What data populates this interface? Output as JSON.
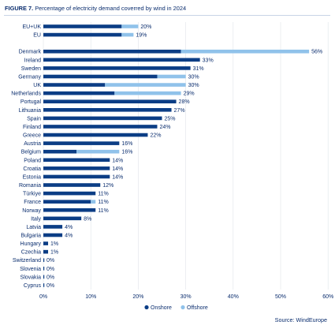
{
  "figure": {
    "label": "FIGURE 7.",
    "title": "Percentage of electricity demand coverred by wind in 2024",
    "source": "Source: WindEurope"
  },
  "colors": {
    "onshore": "#0b3d85",
    "offshore": "#90c2ea",
    "text": "#0a2d6e",
    "grid": "#dfe4ea"
  },
  "chart_data": {
    "type": "bar",
    "orientation": "horizontal",
    "stacked": true,
    "categories": [
      "EU+UK",
      "EU",
      "",
      "Denmark",
      "Ireland",
      "Sweden",
      "Germany",
      "UK",
      "Netherlands",
      "Portugal",
      "Lithuania",
      "Spain",
      "Finland",
      "Greece",
      "Austria",
      "Belgium",
      "Poland",
      "Croatia",
      "Estonia",
      "Romania",
      "Türkiye",
      "France",
      "Norway",
      "Italy",
      "Latvia",
      "Bulgaria",
      "Hungary",
      "Czechia",
      "Switzerland",
      "Slovenia",
      "Slovakia",
      "Cyprus"
    ],
    "series": [
      {
        "name": "Onshore",
        "values": [
          16.5,
          16.5,
          null,
          29,
          33,
          31,
          24,
          13,
          15,
          28,
          27,
          25,
          24,
          22,
          16,
          7,
          14,
          14,
          14,
          12,
          11,
          10,
          11,
          8,
          4,
          4,
          1,
          1,
          0,
          0,
          0,
          0
        ]
      },
      {
        "name": "Offshore",
        "values": [
          3.5,
          2.5,
          null,
          27,
          0,
          0,
          6,
          17,
          14,
          0,
          0,
          0,
          0,
          0,
          0,
          9,
          0,
          0,
          0,
          0,
          0,
          1,
          0,
          0,
          0,
          0,
          0,
          0,
          0,
          0,
          0,
          0
        ]
      }
    ],
    "data_labels": [
      "20%",
      "19%",
      "",
      "56%",
      "33%",
      "31%",
      "30%",
      "30%",
      "29%",
      "28%",
      "27%",
      "25%",
      "24%",
      "22%",
      "16%",
      "16%",
      "14%",
      "14%",
      "14%",
      "12%",
      "11%",
      "11%",
      "11%",
      "8%",
      "4%",
      "4%",
      "1%",
      "1%",
      "0%",
      "0%",
      "0%",
      "0%"
    ],
    "x_ticks": [
      "0%",
      "10%",
      "20%",
      "30%",
      "40%",
      "50%",
      "60%"
    ],
    "xlim": [
      0,
      60
    ],
    "grid": "vertical",
    "legend_position": "bottom-center"
  }
}
